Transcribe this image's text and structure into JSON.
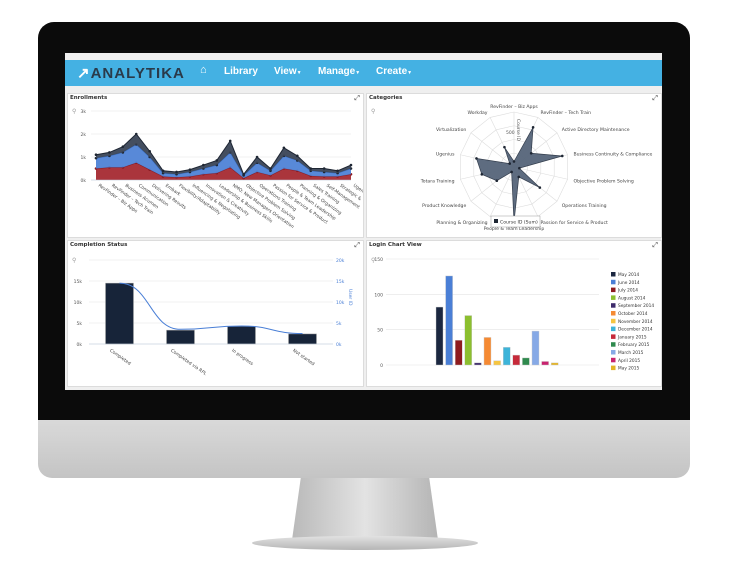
{
  "app": {
    "logo": "ANALYTIKA"
  },
  "nav": {
    "home_icon": "home-icon",
    "items": [
      {
        "label": "Library"
      },
      {
        "label": "View"
      },
      {
        "label": "Manage"
      },
      {
        "label": "Create"
      }
    ]
  },
  "panels": {
    "enrollments": {
      "title": "Enrollments"
    },
    "categories": {
      "title": "Categories"
    },
    "completion": {
      "title": "Completion Status"
    },
    "login": {
      "title": "Login Chart View"
    }
  },
  "chart_data": [
    {
      "type": "area",
      "stacked": true,
      "title": "Enrollments",
      "yticks": [
        "0k",
        "1k",
        "2k",
        "3k"
      ],
      "ylim": [
        0,
        3000
      ],
      "grid": true,
      "categories": [
        "RevFinder – Biz Apps",
        "RevFinder – Tech Train",
        "Business Acumen",
        "Communication",
        "Delivering Results",
        "Embark",
        "Flexibility/Adaptability",
        "Influencing & Negotiating",
        "Innovation & Creativity",
        "Leadership & Business Skills",
        "NMO: New Managers Orientation",
        "Objective Problem Solving",
        "Operations Training",
        "Passion for Service & Product",
        "People & Team Leadership",
        "Planning & Organizing",
        "Sales Training",
        "Self-Management",
        "Strategic &",
        "Ugen"
      ],
      "series": [
        {
          "color": "#a52a32",
          "values": [
            500,
            550,
            550,
            750,
            450,
            150,
            120,
            150,
            250,
            300,
            550,
            80,
            350,
            200,
            500,
            400,
            180,
            150,
            150,
            250
          ]
        },
        {
          "color": "#4f83d6",
          "values": [
            450,
            500,
            650,
            800,
            550,
            150,
            130,
            200,
            250,
            350,
            650,
            120,
            400,
            200,
            550,
            450,
            220,
            200,
            150,
            250
          ]
        },
        {
          "color": "#3a4556",
          "values": [
            150,
            150,
            250,
            450,
            250,
            100,
            100,
            100,
            150,
            200,
            500,
            50,
            250,
            100,
            350,
            200,
            100,
            150,
            100,
            150
          ]
        }
      ]
    },
    {
      "type": "radar",
      "title": "Categories",
      "axis_label": "Course ID",
      "ticks": [
        "500"
      ],
      "rmax": 1000,
      "legend": "bottom",
      "categories": [
        "RevFinder – Biz Apps",
        "RevFinder – Tech Train",
        "Active Directory Maintenance",
        "Business Continuity & Compliance",
        "Objective Problem Solving",
        "Operations Training",
        "Passion for Service & Product",
        "People & Team Leadership",
        "Planning & Organizing",
        "Product Knowledge",
        "Totara Training",
        "Ugenius",
        "Virtualization",
        "Workday"
      ],
      "series": [
        {
          "name": "Course ID (Sum)",
          "color": "#3a4556",
          "values": [
            100,
            800,
            400,
            900,
            100,
            600,
            200,
            1000,
            100,
            400,
            600,
            700,
            100,
            400
          ]
        }
      ]
    },
    {
      "type": "bar",
      "title": "Completion Status",
      "categories": [
        "Completed",
        "Completed via RPL",
        "In progress",
        "Not started"
      ],
      "yticks": [
        "0k",
        "5k",
        "10k",
        "15k"
      ],
      "ylim": [
        0,
        20000
      ],
      "y2label": "User ID",
      "y2ticks": [
        "0k",
        "5k",
        "10k",
        "15k",
        "20k"
      ],
      "y2lim": [
        0,
        20000
      ],
      "series": [
        {
          "type": "bar",
          "color": "#172439",
          "values": [
            14500,
            3300,
            4200,
            2400
          ]
        },
        {
          "type": "line",
          "color": "#4a7fd6",
          "axis": "right",
          "values": [
            14500,
            3500,
            4300,
            2500
          ]
        }
      ]
    },
    {
      "type": "bar",
      "title": "Login Chart View",
      "yticks": [
        "0",
        "50",
        "100",
        "150"
      ],
      "ylim": [
        0,
        150
      ],
      "legend": "right",
      "series": [
        {
          "name": "May 2014",
          "color": "#1b2740",
          "value": 82
        },
        {
          "name": "June 2014",
          "color": "#4a7fd6",
          "value": 126
        },
        {
          "name": "July 2014",
          "color": "#8e1b1f",
          "value": 35
        },
        {
          "name": "August 2014",
          "color": "#8cbf2f",
          "value": 70
        },
        {
          "name": "September 2014",
          "color": "#3d2b6b",
          "value": 3
        },
        {
          "name": "October 2014",
          "color": "#f58a33",
          "value": 39
        },
        {
          "name": "November 2014",
          "color": "#f5c542",
          "value": 6
        },
        {
          "name": "December 2014",
          "color": "#3db4d9",
          "value": 25
        },
        {
          "name": "January 2015",
          "color": "#c62a3a",
          "value": 14
        },
        {
          "name": "February 2015",
          "color": "#2f8a4e",
          "value": 10
        },
        {
          "name": "March 2015",
          "color": "#86a9e6",
          "value": 48
        },
        {
          "name": "April 2015",
          "color": "#c8236f",
          "value": 5
        },
        {
          "name": "May 2015",
          "color": "#e3b326",
          "value": 3
        }
      ]
    }
  ]
}
